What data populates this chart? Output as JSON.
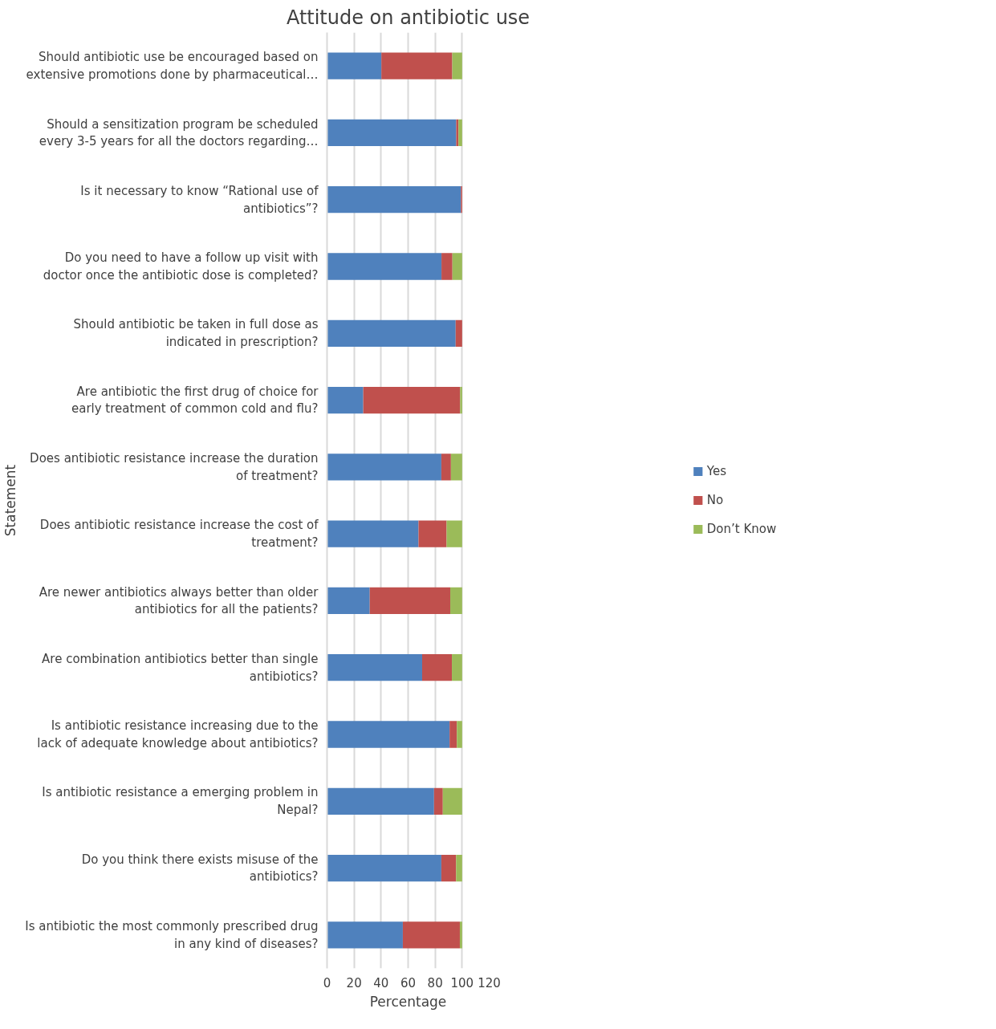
{
  "chart_data": {
    "type": "bar",
    "orientation": "horizontal",
    "stacked": true,
    "title": "Attitude on antibiotic use",
    "xlabel": "Percentage",
    "ylabel": "Statement",
    "categories": [
      "Should antibiotic use be encouraged based on extensive promotions done by pharmaceutical…",
      "Should a sensitization program be scheduled every 3-5 years for all the doctors regarding…",
      "Is it necessary to know “Rational use of antibiotics”?",
      "Do you need to have a follow up visit with doctor once the antibiotic dose is completed?",
      "Should antibiotic be taken in full dose as indicated in prescription?",
      "Are antibiotic the first drug of choice for early treatment of common cold and flu?",
      "Does antibiotic resistance increase the duration of treatment?",
      "Does antibiotic resistance increase the cost of treatment?",
      "Are newer antibiotics always better than older antibiotics for all the patients?",
      "Are combination antibiotics better than single antibiotics?",
      "Is antibiotic resistance increasing due to the lack of adequate knowledge about antibiotics?",
      "Is antibiotic resistance a emerging problem in Nepal?",
      "Do you think there exists misuse of the antibiotics?",
      "Is antibiotic the most commonly prescribed drug in any kind of diseases?"
    ],
    "series": [
      {
        "name": "Yes",
        "color": "#4f81bd",
        "values": [
          40.2,
          95.6,
          99.1,
          84.7,
          95.2,
          26.8,
          84.6,
          67.7,
          31.6,
          70.4,
          90.7,
          79.2,
          84.6,
          56.1
        ]
      },
      {
        "name": "No",
        "color": "#c0504d",
        "values": [
          52.5,
          1.7,
          0.9,
          8.1,
          4.8,
          71.7,
          7.1,
          20.8,
          59.6,
          22.0,
          5.4,
          6.5,
          10.9,
          42.2
        ]
      },
      {
        "name": "Don’t Know",
        "color": "#9bbb59",
        "values": [
          7.3,
          2.7,
          0,
          7.2,
          0,
          1.5,
          8.3,
          11.5,
          8.8,
          7.6,
          3.9,
          14.3,
          4.5,
          1.7
        ]
      }
    ],
    "xlim": [
      0,
      120
    ],
    "xticks": [
      0,
      20,
      40,
      60,
      80,
      100,
      120
    ],
    "grid": "x",
    "legend": "right"
  }
}
